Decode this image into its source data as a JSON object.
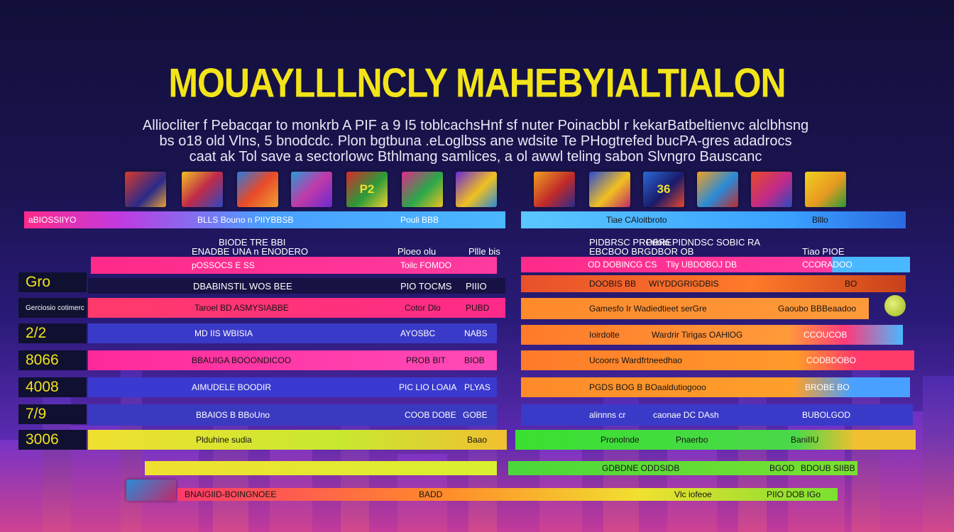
{
  "title": "MOUAYLLLNCLY MAHEBYIALTIALON",
  "subtitle": [
    "Alliocliter f Pebacqar to monkrb A PIF a 9 I5 toblcachsHnf sf nuter Poinacbbl r kekarBatbeltienvc alclbhsng",
    "bs o18 old Vlns, 5 bnodcdc. Plon bgtbuna .eLoglbss ane wdsite Te PHogtrefed bucPA-gres adadrocs",
    "caat ak Tol save a sectorlowc Bthlmang samlices, a ol awwl teling sabon Slvngro Bauscanc"
  ],
  "thumbnails_left": [
    "",
    "",
    "",
    "",
    "P2",
    "",
    ""
  ],
  "thumbnails_right": [
    "",
    "",
    "36",
    "",
    "",
    ""
  ],
  "left": {
    "header": {
      "a": "aBIOSSIIYO",
      "b": "BLLS Bouno  n PIIYBBSB",
      "c": "Pouli BBB"
    },
    "sub": {
      "a": "BIODE TRE BBI",
      "b": "ENADBE UNA  n ENODERO",
      "c": "Ploeo olu",
      "d": "Pllle bis"
    },
    "pink_bar": {
      "a": "pOSSOCS E SS",
      "b": "Toilc FOMDO"
    },
    "rows": [
      {
        "label": "Gro",
        "a": "DBABINSTIL WOS BEE",
        "b": "PIO TOCMS",
        "c": "PIIIO"
      },
      {
        "label": "Gerciosio cotimerc",
        "a": "Taroel BD ASMYSIABBE",
        "b": "Cotor Dlo",
        "c": "PUBD"
      },
      {
        "label": "2/2",
        "a": "MD IIS WBISIA",
        "b": "AYOSBC",
        "c": "NABS"
      },
      {
        "label": "8066",
        "a": "BBAUIGA  BOOONDICOO",
        "b": "PROB BIT",
        "c": "BIOB"
      },
      {
        "label": "4008",
        "a": "AIMUDELE BOODIR",
        "b": "PIC LIO LOAIA",
        "c": "PLYAS"
      },
      {
        "label": "7/9",
        "a": "BBAIOS  B BBoUno",
        "b": "COOB DOBE",
        "c": "GOBE"
      },
      {
        "label": "3006",
        "a": "Plduhine  sudia",
        "b": "Baao",
        "c": ""
      }
    ]
  },
  "right": {
    "header": {
      "a": "Tiae CAloitbroto",
      "b": "Blllo"
    },
    "sub": {
      "a": "PIDBRSC PROBRE",
      "b": "Prioio  PIDNDSC SOBIC RA",
      "c": "EBCBOO BRGDBOR OB",
      "d": "Tiao PIOE"
    },
    "rows": [
      {
        "a": "OD DOBINCG CS",
        "b": "Tliy UBDOBOJ DB",
        "c": "CCORADOO"
      },
      {
        "a": "DOOBIS  BB",
        "b": "WIYDDGRIGDBIS",
        "c": "BO"
      },
      {
        "a": "Gamesfo  Ir  Wadiedtieet serGre",
        "c": "Gaoubo BBBeaadoo"
      },
      {
        "a": "Ioirdolte",
        "b": "Wardrir Tirigas OAHlOG",
        "c": "CCOUCOB"
      },
      {
        "a": "Ucoorrs  Wardfrtneedhao",
        "c": "CODBDOBO"
      },
      {
        "a": "PGDS BOG  B  BOaaldutiogooo",
        "c": "BROBE BO"
      },
      {
        "a": "alinnns  cr",
        "b": "caonae DC DAsh",
        "c": "BUBOLGOD"
      },
      {
        "a": "Pronolnde",
        "b": "Pnaerbo",
        "c": "BaniIIU"
      }
    ],
    "bottom": {
      "a": "GDBDNE  ODDSIDB",
      "b": "BGOD",
      "c": "BDOUB SIIBB"
    },
    "last": {
      "a": "Vlc  iofeoe",
      "b": "PIIO DOB IGo"
    }
  },
  "bottom_bar": {
    "a": "BNAIGIID-BOINGNOEE",
    "b": "BADD"
  }
}
